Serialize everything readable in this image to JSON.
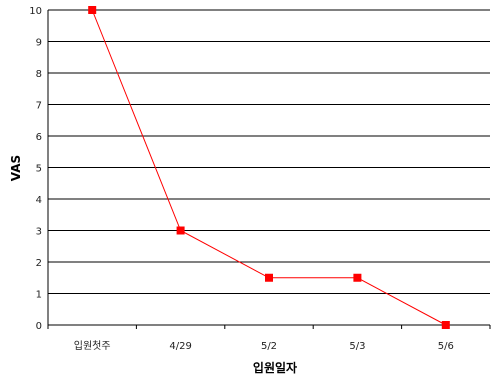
{
  "chart_data": {
    "type": "line",
    "title": "",
    "xlabel": "입원일자",
    "ylabel": "VAS",
    "categories": [
      "입원첫주",
      "4/29",
      "5/2",
      "5/3",
      "5/6"
    ],
    "series": [
      {
        "values": [
          10,
          3,
          1.5,
          1.5,
          0
        ]
      }
    ],
    "ylim": [
      0,
      10
    ],
    "yticks": [
      0,
      1,
      2,
      3,
      4,
      5,
      6,
      7,
      8,
      9,
      10
    ],
    "grid": "horizontal",
    "legend": "none",
    "colors": {
      "series": "#ff0000",
      "grid": "#000000",
      "axis": "#000000"
    }
  }
}
